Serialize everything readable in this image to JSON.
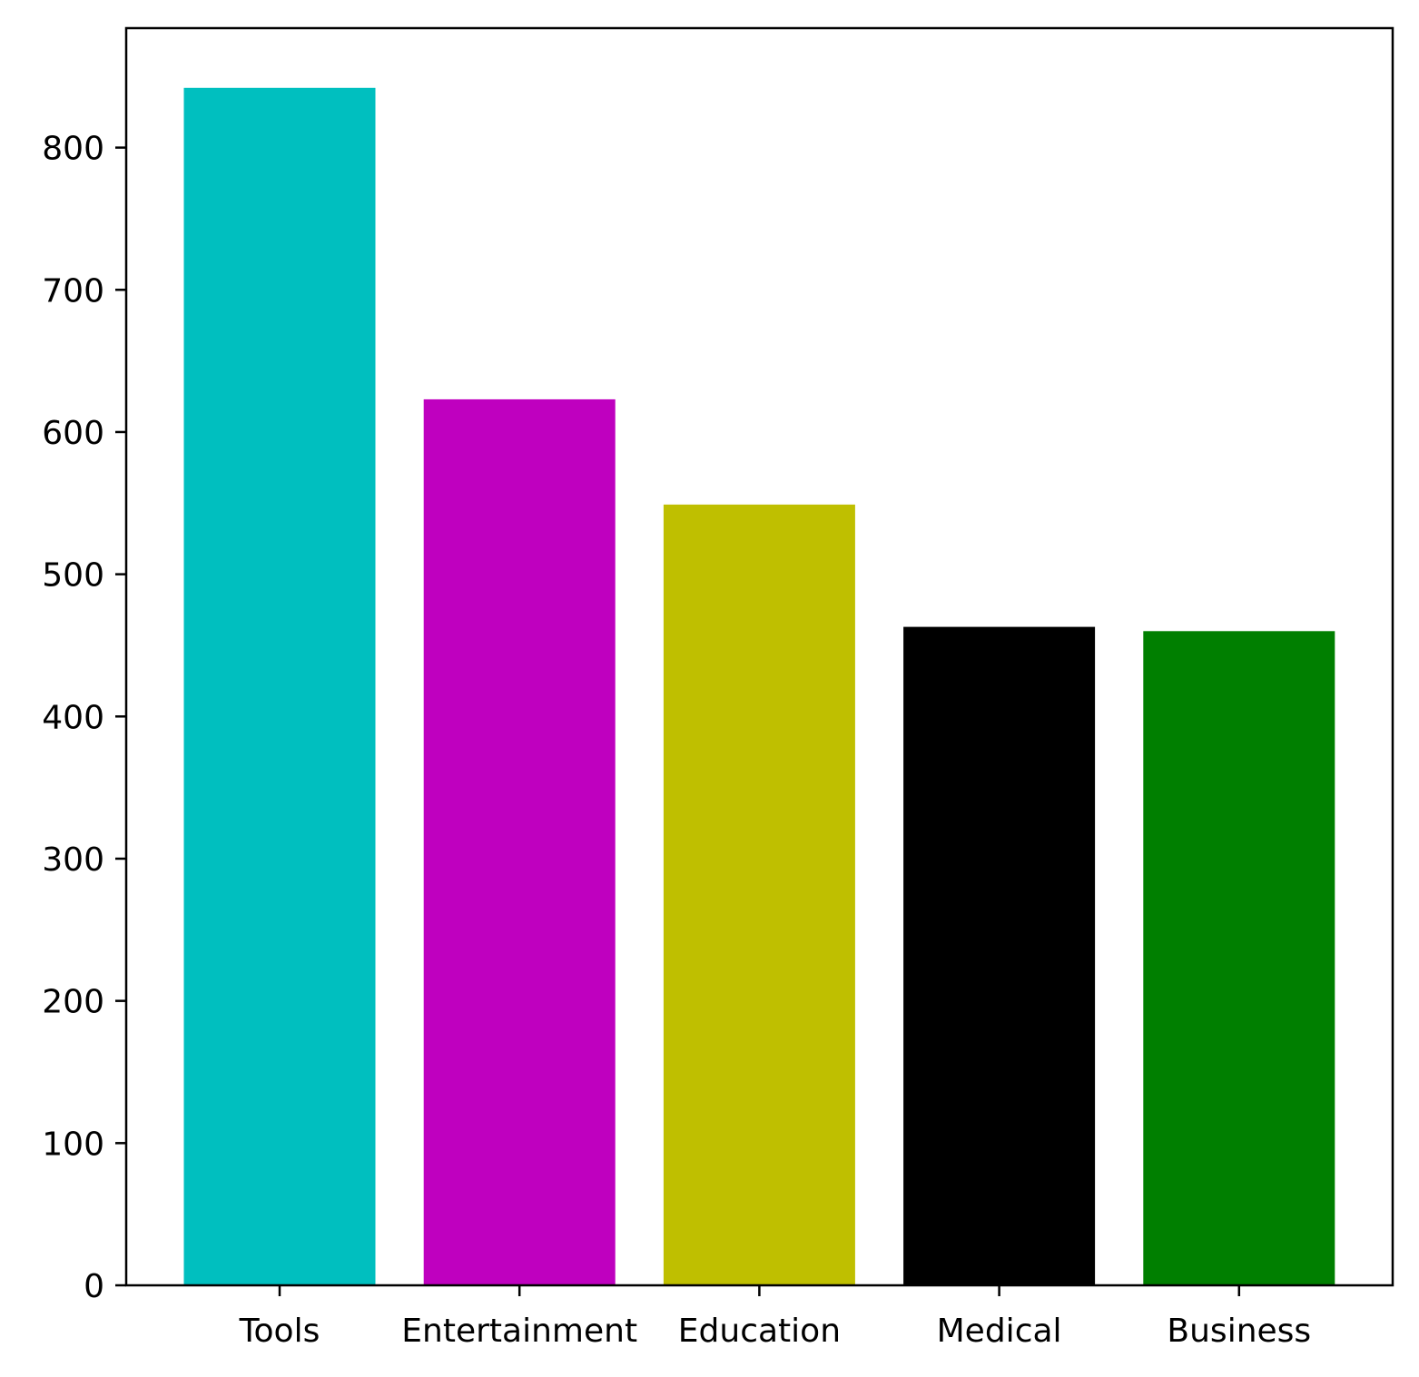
{
  "chart_data": {
    "type": "bar",
    "categories": [
      "Tools",
      "Entertainment",
      "Education",
      "Medical",
      "Business"
    ],
    "values": [
      842,
      623,
      549,
      463,
      460
    ],
    "colors": [
      "#00bfbf",
      "#bf00bf",
      "#bfbf00",
      "#000000",
      "#007f00"
    ],
    "title": "",
    "xlabel": "",
    "ylabel": "",
    "ylim": [
      0,
      884
    ],
    "yticks": [
      0,
      100,
      200,
      300,
      400,
      500,
      600,
      700,
      800
    ],
    "grid": false,
    "legend": "none"
  }
}
